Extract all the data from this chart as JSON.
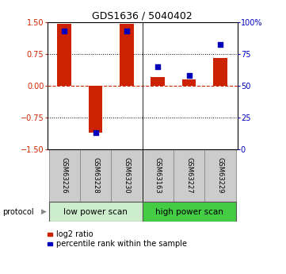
{
  "title": "GDS1636 / 5040402",
  "samples": [
    "GSM63226",
    "GSM63228",
    "GSM63230",
    "GSM63163",
    "GSM63227",
    "GSM63229"
  ],
  "log2_ratio": [
    1.45,
    -1.1,
    1.45,
    0.2,
    0.15,
    0.65
  ],
  "percentile_rank": [
    93,
    13,
    93,
    65,
    58,
    82
  ],
  "ylim_left": [
    -1.5,
    1.5
  ],
  "ylim_right": [
    0,
    100
  ],
  "yticks_left": [
    -1.5,
    -0.75,
    0,
    0.75,
    1.5
  ],
  "yticks_right": [
    0,
    25,
    50,
    75,
    100
  ],
  "ytick_labels_right": [
    "0",
    "25",
    "50",
    "75",
    "100%"
  ],
  "bar_color": "#cc2200",
  "dot_color": "#0000bb",
  "zero_line_color": "#cc2200",
  "protocol_groups": [
    {
      "label": "low power scan",
      "start": 0,
      "end": 2,
      "color": "#cceecc"
    },
    {
      "label": "high power scan",
      "start": 3,
      "end": 5,
      "color": "#44cc44"
    }
  ],
  "protocol_label": "protocol",
  "legend_items": [
    {
      "label": "log2 ratio",
      "color": "#cc2200"
    },
    {
      "label": "percentile rank within the sample",
      "color": "#0000bb"
    }
  ],
  "bar_width": 0.45,
  "dot_size": 25,
  "background_color": "#ffffff",
  "label_color_left": "#cc2200",
  "label_color_right": "#0000bb",
  "sample_box_color": "#cccccc",
  "n_samples": 6
}
